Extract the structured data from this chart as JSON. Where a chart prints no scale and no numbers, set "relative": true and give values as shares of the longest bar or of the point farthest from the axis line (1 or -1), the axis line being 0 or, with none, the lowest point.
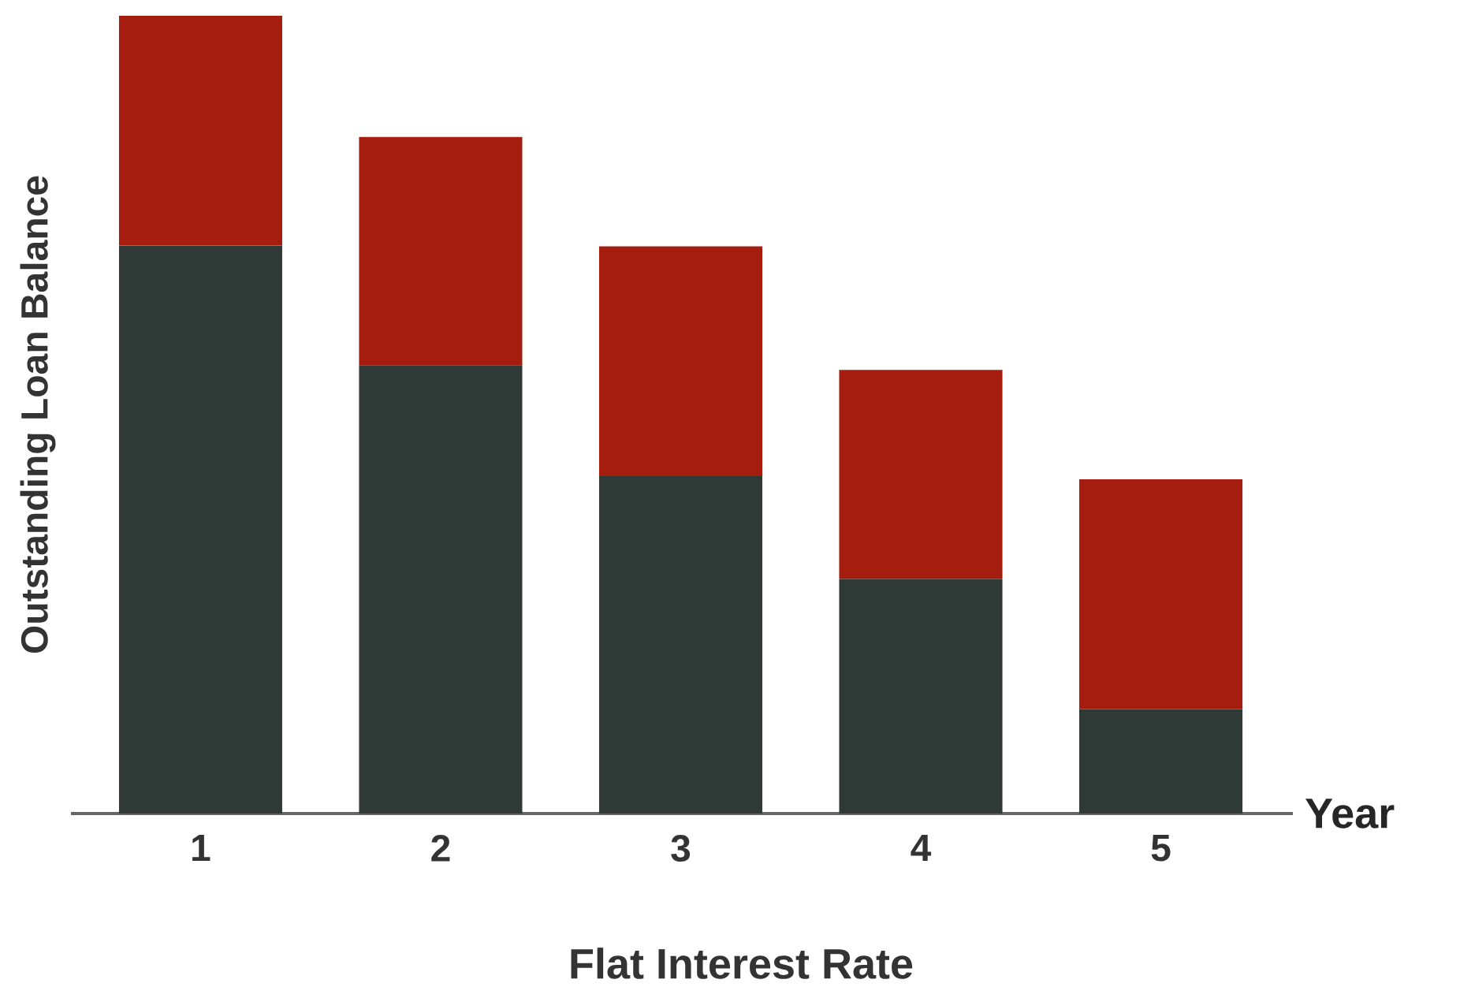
{
  "chart_data": {
    "type": "bar",
    "stacked": true,
    "relative": true,
    "title": "Flat Interest Rate",
    "xlabel": "Year",
    "ylabel": "Outstanding Loan Balance",
    "categories": [
      "1",
      "2",
      "3",
      "4",
      "5"
    ],
    "series": [
      {
        "color": "#2f3a37",
        "values": [
          0.712,
          0.562,
          0.423,
          0.294,
          0.131
        ]
      },
      {
        "color": "#a51d0f",
        "values": [
          0.288,
          0.286,
          0.288,
          0.262,
          0.288
        ]
      }
    ]
  }
}
